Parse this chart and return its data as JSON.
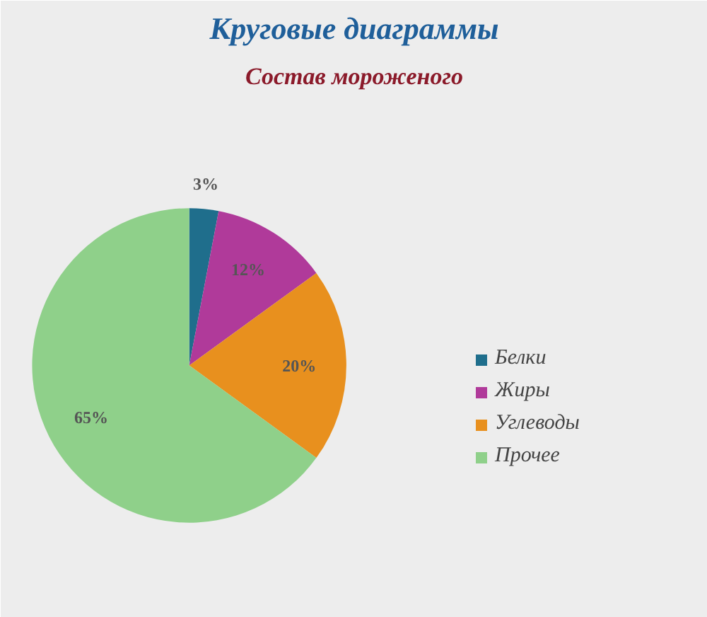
{
  "chart_data": {
    "type": "pie",
    "title": "Круговые диаграммы",
    "subtitle": "Состав мороженого",
    "categories": [
      "Белки",
      "Жиры",
      "Углеводы",
      "Прочее"
    ],
    "values": [
      3,
      12,
      20,
      65
    ],
    "colors": [
      "#1f6e8c",
      "#b03a9a",
      "#e8901e",
      "#8fd08a"
    ],
    "value_labels": [
      "3%",
      "12%",
      "20%",
      "65%"
    ],
    "legend": "right"
  }
}
